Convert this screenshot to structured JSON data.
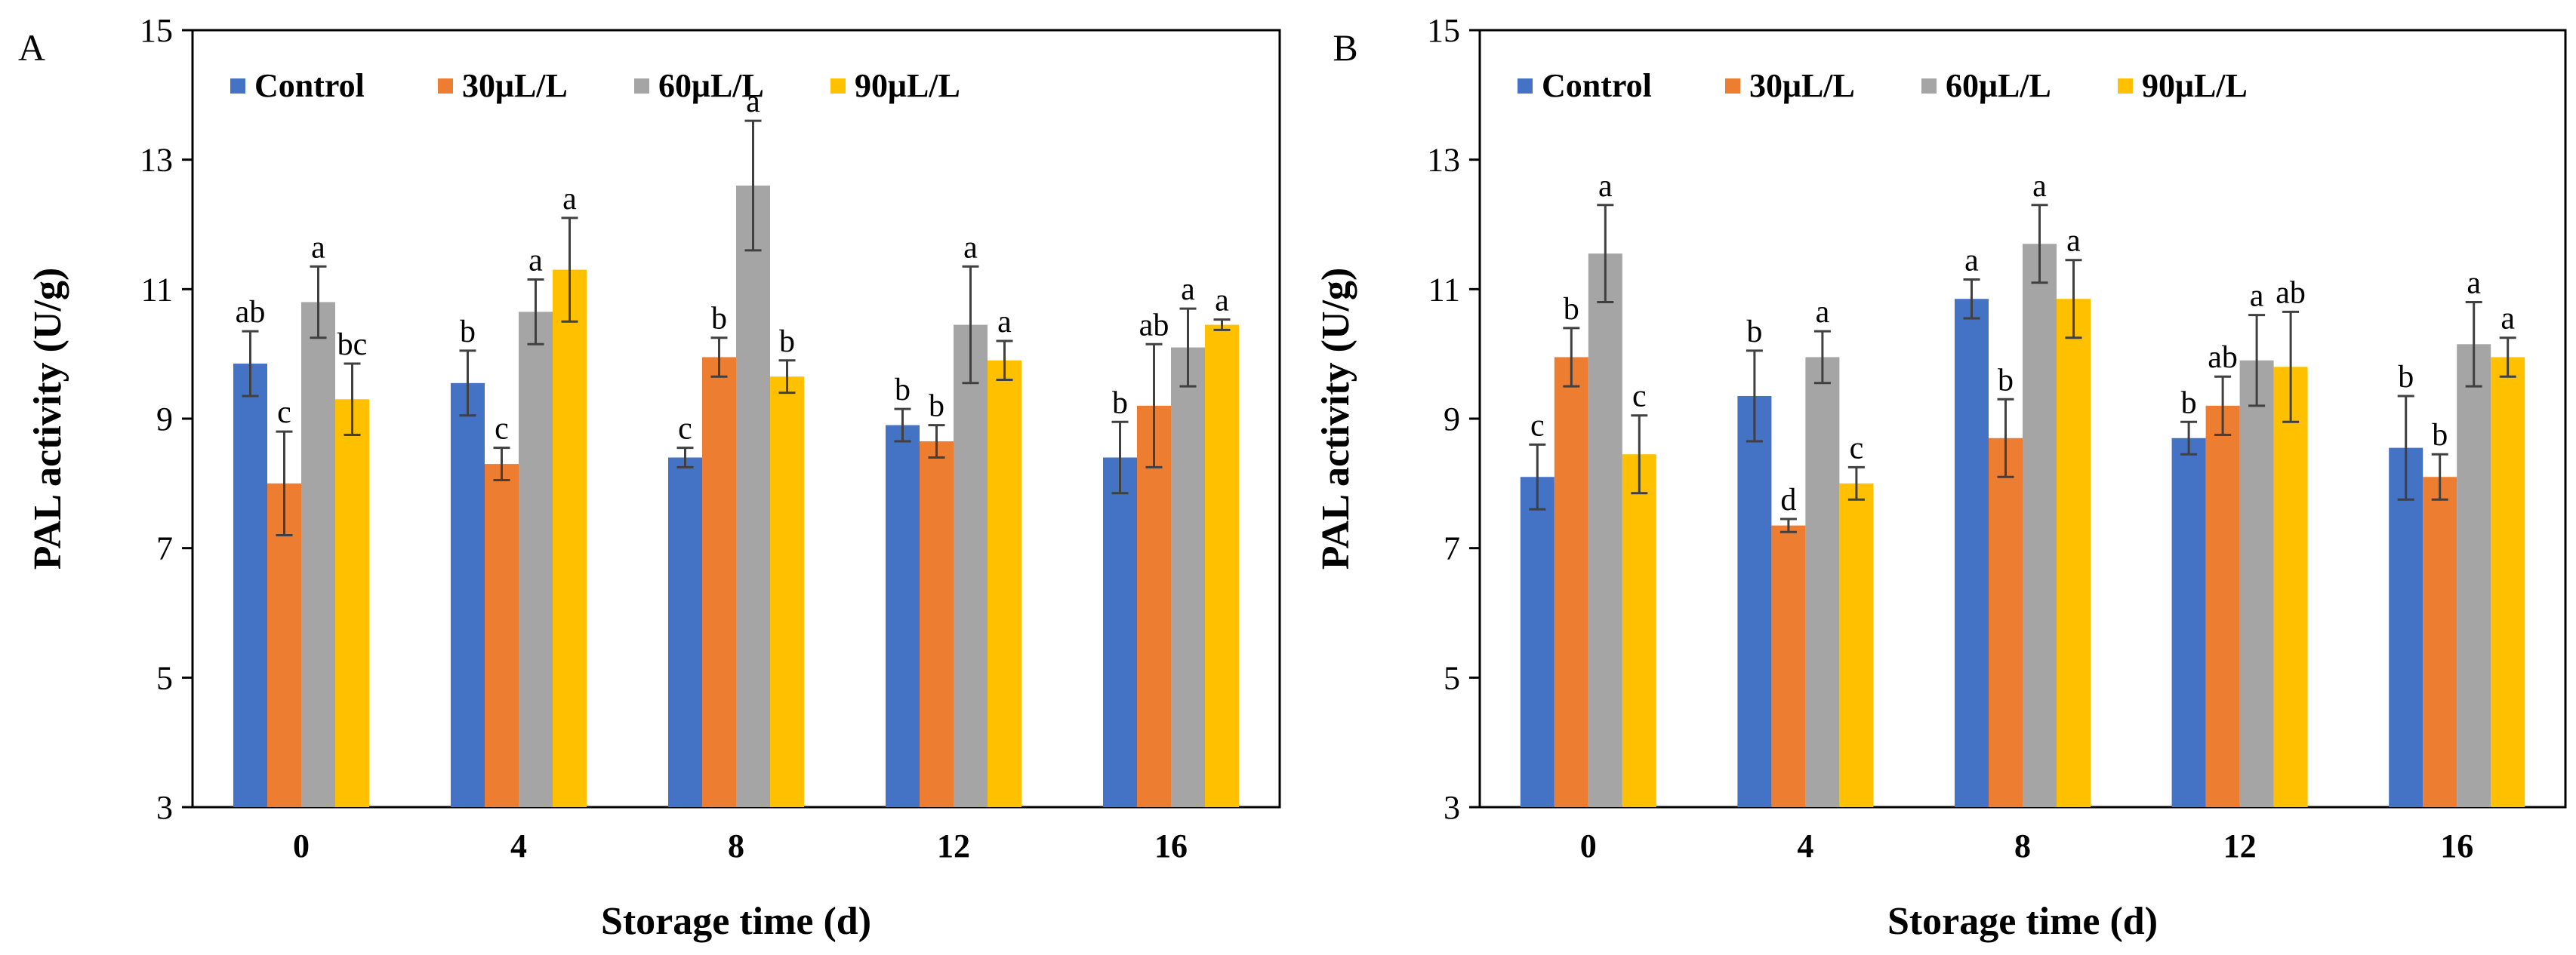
{
  "chart_data": [
    {
      "type": "bar",
      "panel_label": "A",
      "categories": [
        "0",
        "4",
        "8",
        "12",
        "16"
      ],
      "xlabel": "Storage time (d)",
      "ylabel": "PAL activity (U/g)",
      "ylim": [
        3,
        15
      ],
      "yticks": [
        "3",
        "5",
        "7",
        "9",
        "11",
        "13",
        "15"
      ],
      "legend_position": "top-left",
      "series": [
        {
          "name": "Control",
          "color": "#4472c4",
          "values": [
            9.85,
            9.55,
            8.4,
            8.9,
            8.4
          ],
          "errors": [
            0.5,
            0.5,
            0.15,
            0.25,
            0.55
          ],
          "letters": [
            "ab",
            "b",
            "c",
            "b",
            "b"
          ]
        },
        {
          "name": "30μL/L",
          "color": "#ed7d31",
          "values": [
            8.0,
            8.3,
            9.95,
            8.65,
            9.2
          ],
          "errors": [
            0.8,
            0.25,
            0.3,
            0.25,
            0.95
          ],
          "letters": [
            "c",
            "c",
            "b",
            "b",
            "ab"
          ]
        },
        {
          "name": "60μL/L",
          "color": "#a5a5a5",
          "values": [
            10.8,
            10.65,
            12.6,
            10.45,
            10.1
          ],
          "errors": [
            0.55,
            0.5,
            1.0,
            0.9,
            0.6
          ],
          "letters": [
            "a",
            "a",
            "a",
            "a",
            "a"
          ]
        },
        {
          "name": "90μL/L",
          "color": "#ffc000",
          "values": [
            9.3,
            11.3,
            9.65,
            9.9,
            10.45
          ],
          "errors": [
            0.55,
            0.8,
            0.25,
            0.3,
            0.08
          ],
          "letters": [
            "bc",
            "a",
            "b",
            "a",
            "a"
          ]
        }
      ]
    },
    {
      "type": "bar",
      "panel_label": "B",
      "categories": [
        "0",
        "4",
        "8",
        "12",
        "16"
      ],
      "xlabel": "Storage time (d)",
      "ylabel": "PAL activity (U/g)",
      "ylim": [
        3,
        15
      ],
      "yticks": [
        "3",
        "5",
        "7",
        "9",
        "11",
        "13",
        "15"
      ],
      "legend_position": "top-left",
      "series": [
        {
          "name": "Control",
          "color": "#4472c4",
          "values": [
            8.1,
            9.35,
            10.85,
            8.7,
            8.55
          ],
          "errors": [
            0.5,
            0.7,
            0.3,
            0.25,
            0.8
          ],
          "letters": [
            "c",
            "b",
            "a",
            "b",
            "b"
          ]
        },
        {
          "name": "30μL/L",
          "color": "#ed7d31",
          "values": [
            9.95,
            7.35,
            8.7,
            9.2,
            8.1
          ],
          "errors": [
            0.45,
            0.1,
            0.6,
            0.45,
            0.35
          ],
          "letters": [
            "b",
            "d",
            "b",
            "ab",
            "b"
          ]
        },
        {
          "name": "60μL/L",
          "color": "#a5a5a5",
          "values": [
            11.55,
            9.95,
            11.7,
            9.9,
            10.15
          ],
          "errors": [
            0.75,
            0.4,
            0.6,
            0.7,
            0.65
          ],
          "letters": [
            "a",
            "a",
            "a",
            "a",
            "a"
          ]
        },
        {
          "name": "90μL/L",
          "color": "#ffc000",
          "values": [
            8.45,
            8.0,
            10.85,
            9.8,
            9.95
          ],
          "errors": [
            0.6,
            0.25,
            0.6,
            0.85,
            0.3
          ],
          "letters": [
            "c",
            "c",
            "a",
            "ab",
            "a"
          ]
        }
      ]
    }
  ]
}
